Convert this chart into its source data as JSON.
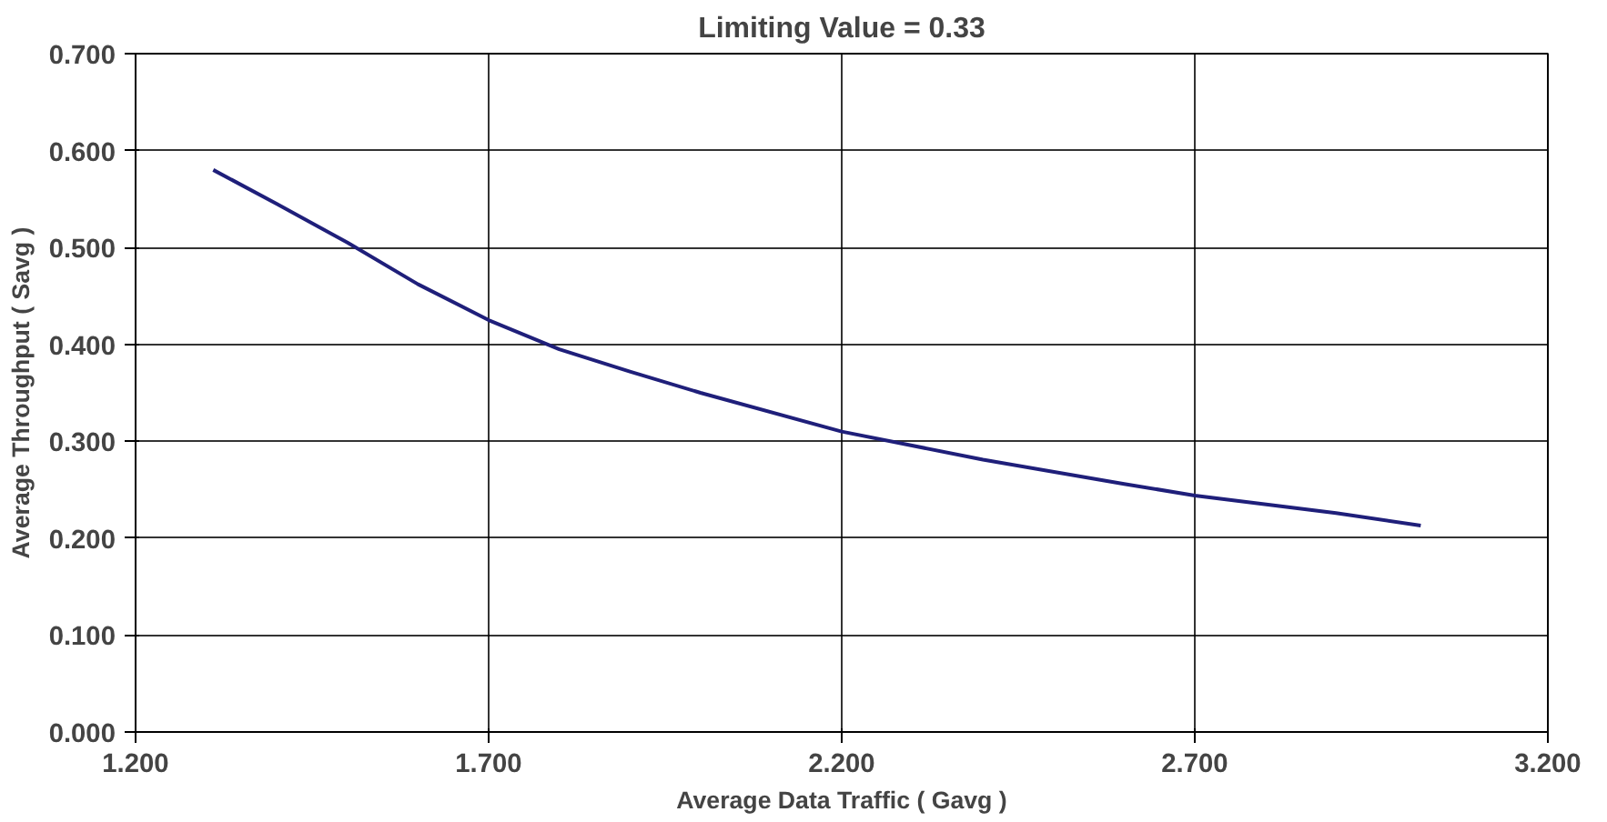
{
  "chart_data": {
    "type": "line",
    "title": "Limiting Value = 0.33",
    "xlabel": "Average Data Traffic ( Gavg )",
    "ylabel": "Average Throughput ( Savg )",
    "x": [
      1.31,
      1.4,
      1.5,
      1.6,
      1.7,
      1.8,
      1.9,
      2.0,
      2.2,
      2.4,
      2.6,
      2.7,
      2.9,
      3.02
    ],
    "series": [
      {
        "color": "#1f1f7a",
        "values": [
          0.58,
          0.545,
          0.505,
          0.462,
          0.425,
          0.395,
          0.372,
          0.35,
          0.31,
          0.281,
          0.256,
          0.244,
          0.226,
          0.213
        ]
      }
    ],
    "xlim": [
      1.2,
      3.2
    ],
    "xticks": [
      {
        "value": 1.2,
        "label": "1.200"
      },
      {
        "value": 1.7,
        "label": "1.700"
      },
      {
        "value": 2.2,
        "label": "2.200"
      },
      {
        "value": 2.7,
        "label": "2.700"
      },
      {
        "value": 3.2,
        "label": "3.200"
      }
    ],
    "ylim": [
      0,
      0.7
    ],
    "yticks": [
      {
        "value": 0,
        "label": "0.000"
      },
      {
        "value": 0.1,
        "label": "0.100"
      },
      {
        "value": 0.2,
        "label": "0.200"
      },
      {
        "value": 0.3,
        "label": "0.300"
      },
      {
        "value": 0.4,
        "label": "0.400"
      },
      {
        "value": 0.5,
        "label": "0.500"
      },
      {
        "value": 0.6,
        "label": "0.600"
      },
      {
        "value": 0.7,
        "label": "0.700"
      }
    ],
    "grid": true
  }
}
